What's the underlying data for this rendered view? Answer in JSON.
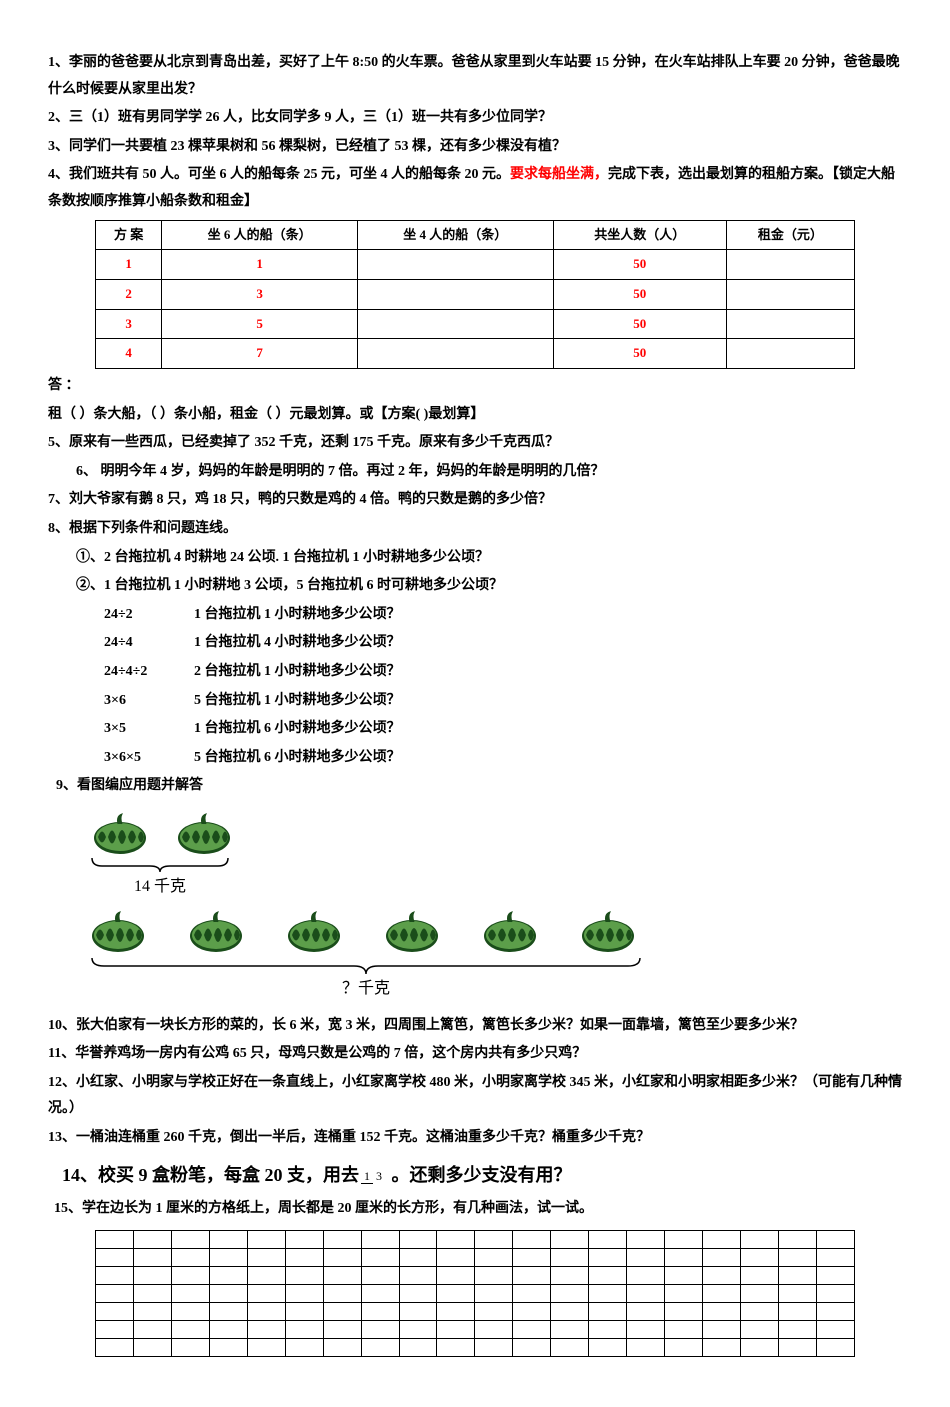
{
  "q1": "1、李丽的爸爸要从北京到青岛出差，买好了上午 8:50 的火车票。爸爸从家里到火车站要 15 分钟，在火车站排队上车要 20 分钟，爸爸最晚什么时候要从家里出发？",
  "q2": "2、三（1）班有男同学学 26 人，比女同学多 9 人，三（1）班一共有多少位同学？",
  "q3": "3、同学们一共要植 23 棵苹果树和 56 棵梨树，已经植了 53 棵，还有多少棵没有植？",
  "q4_part1": "4、我们班共有 50 人。可坐 6 人的船每条 25 元，可坐 4 人的船每条 20 元。",
  "q4_red": "要求每船坐满，",
  "q4_part2": "完成下表，选出最划算的租船方案。【锁定大船条数按顺序推算小船条数和租金】",
  "table": {
    "headers": [
      "方 案",
      "坐 6 人的船（条）",
      "坐 4 人的船（条）",
      "共坐人数（人）",
      "租金（元）"
    ],
    "rows": [
      [
        "1",
        "1",
        "",
        "50",
        ""
      ],
      [
        "2",
        "3",
        "",
        "50",
        ""
      ],
      [
        "3",
        "5",
        "",
        "50",
        ""
      ],
      [
        "4",
        "7",
        "",
        "50",
        ""
      ]
    ]
  },
  "answer_label": "答 ：",
  "answer_line": "租（ ）条大船，（ ）条小船，租金（ ）元最划算。或【方案(  )最划算】",
  "q5": "5、原来有一些西瓜，已经卖掉了 352 千克，还剩 175 千克。原来有多少千克西瓜？",
  "q6": "6、 明明今年 4 岁，妈妈的年龄是明明的 7 倍。再过 2 年，妈妈的年龄是明明的几倍？",
  "q7": "7、刘大爷家有鹅 8 只，鸡 18 只，鸭的只数是鸡的 4 倍。鸭的只数是鹅的多少倍？",
  "q8": "8、根据下列条件和问题连线。",
  "q8_1": "①、2 台拖拉机 4 时耕地 24 公顷. 1 台拖拉机 1 小时耕地多少公顷？",
  "q8_2": "②、1 台拖拉机 1 小时耕地 3 公顷，5 台拖拉机 6 时可耕地多少公顷？",
  "calc": [
    {
      "left": "24÷2",
      "right": "1 台拖拉机 1 小时耕地多少公顷？"
    },
    {
      "left": "24÷4",
      "right": "1 台拖拉机 4 小时耕地多少公顷？"
    },
    {
      "left": "24÷4÷2",
      "right": "2 台拖拉机 1 小时耕地多少公顷？"
    },
    {
      "left": "3×6",
      "right": "5 台拖拉机 1 小时耕地多少公顷？"
    },
    {
      "left": "3×5",
      "right": "1 台拖拉机 6 小时耕地多少公顷？"
    },
    {
      "left": "3×6×5",
      "right": "5 台拖拉机 6 小时耕地多少公顷？"
    }
  ],
  "q9": "9、看图编应用题并解答",
  "wm_top_label": "14 千克",
  "wm_bottom_label": "？千克",
  "q10": "10、张大伯家有一块长方形的菜的，长 6 米，宽 3 米，四周围上篱笆，篱笆长多少米？如果一面靠墙，篱笆至少要多少米？",
  "q11": "11、华誉养鸡场一房内有公鸡 65 只，母鸡只数是公鸡的 7 倍，这个房内共有多少只鸡？",
  "q12": "12、小红家、小明家与学校正好在一条直线上，小红家离学校 480 米，小明家离学校 345 米，小红家和小明家相距多少米？（可能有几种情况。）",
  "q13": "13、一桶油连桶重 260 千克，倒出一半后，连桶重 152 千克。这桶油重多少千克？桶重多少千克？",
  "q14_prefix": "14、校买 9 盒粉笔，每盒 20 支，用去",
  "q14_suffix": " 。还剩多少支没有用？",
  "frac_num": "1",
  "frac_den": "3",
  "q15": "15、学在边长为 1 厘米的方格纸上，周长都是 20 厘米的长方形，有几种画法，试一试。",
  "grid": {
    "rows": 7,
    "cols": 20
  },
  "colors": {
    "text": "#000000",
    "red": "#ff0000",
    "wm_dark": "#1a4d1a",
    "wm_light": "#5c9e4a",
    "background": "#ffffff"
  }
}
